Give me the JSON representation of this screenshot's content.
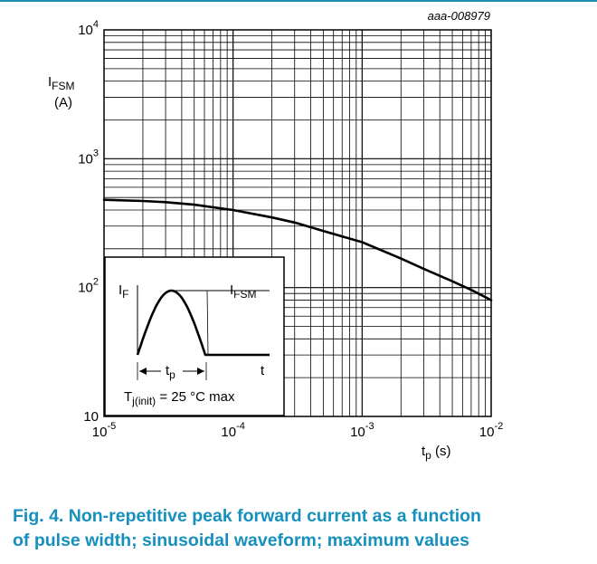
{
  "chart_data": {
    "type": "line",
    "figure_id": "aaa-008979",
    "x_scale": "log",
    "y_scale": "log",
    "xlim": [
      1e-05,
      0.01
    ],
    "ylim": [
      10,
      10000
    ],
    "grid": true,
    "x_ticks": [
      {
        "base": "10",
        "exp": "-5"
      },
      {
        "base": "10",
        "exp": "-4"
      },
      {
        "base": "10",
        "exp": "-3"
      },
      {
        "base": "10",
        "exp": "-2"
      }
    ],
    "y_ticks": [
      {
        "base": "10",
        "exp": ""
      },
      {
        "base": "10",
        "exp": "2"
      },
      {
        "base": "10",
        "exp": "3"
      },
      {
        "base": "10",
        "exp": "4"
      }
    ],
    "xlabel": {
      "main": "t",
      "sub": "p",
      "unit": "(s)"
    },
    "ylabel": {
      "main": "I",
      "sub": "FSM",
      "unit": "(A)"
    },
    "series": [
      {
        "x": [
          1e-05,
          2e-05,
          3e-05,
          5e-05,
          0.0001,
          0.0002,
          0.0003,
          0.0005,
          0.001,
          0.002,
          0.003,
          0.005,
          0.007,
          0.01
        ],
        "y": [
          480,
          470,
          460,
          440,
          400,
          350,
          320,
          275,
          225,
          168,
          140,
          112,
          96,
          80
        ]
      }
    ],
    "inset": {
      "if_label": {
        "main": "I",
        "sub": "F"
      },
      "ifsm_label": {
        "main": "I",
        "sub": "FSM"
      },
      "t_label": "t",
      "tp_label": {
        "main": "t",
        "sub": "p"
      },
      "tj_label": {
        "main": "T",
        "sub": "j(init)",
        "rest": " = 25 °C max"
      }
    }
  },
  "caption": {
    "line1": "Fig. 4. Non-repetitive peak forward current as a function",
    "line2": "of pulse width; sinusoidal waveform; maximum values"
  }
}
